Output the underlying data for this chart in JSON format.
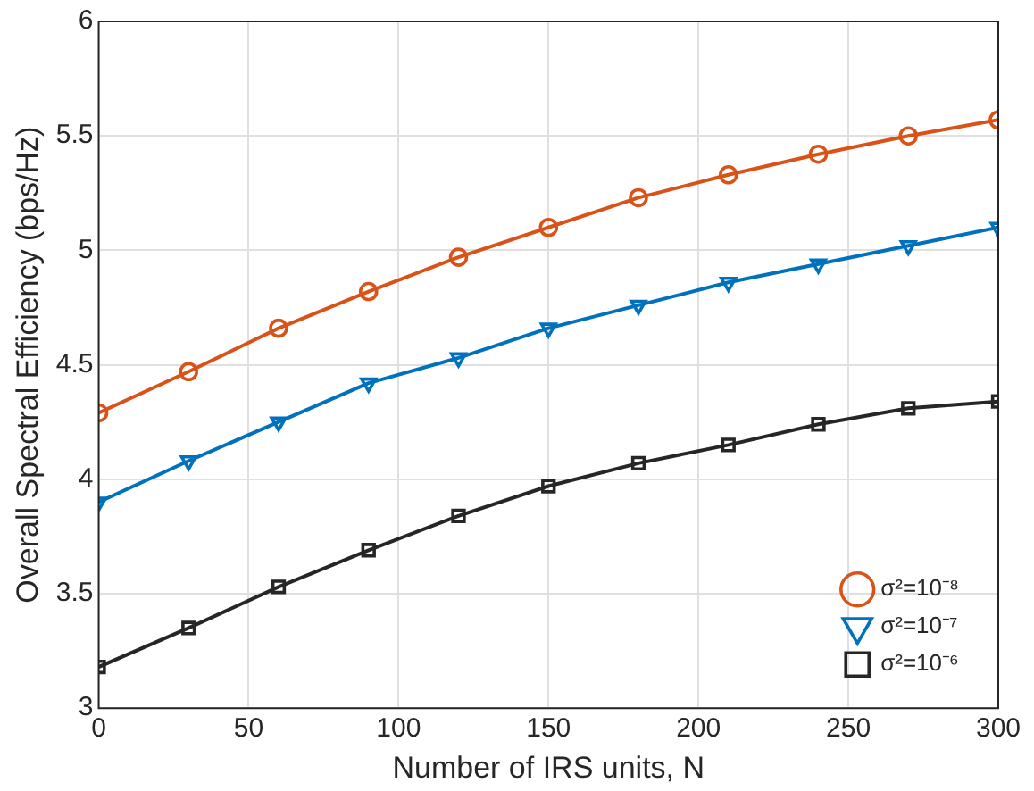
{
  "chart_data": {
    "type": "line",
    "xlabel": "Number of IRS units, N",
    "ylabel": "Overall Spectral Efficiency (bps/Hz)",
    "x": [
      0,
      30,
      60,
      90,
      120,
      150,
      180,
      210,
      240,
      270,
      300
    ],
    "series": [
      {
        "name": "σ²=10⁻⁸",
        "color": "#d95319",
        "marker": "circle",
        "values": [
          4.29,
          4.47,
          4.66,
          4.82,
          4.97,
          5.1,
          5.23,
          5.33,
          5.42,
          5.5,
          5.57
        ]
      },
      {
        "name": "σ²=10⁻⁷",
        "color": "#0072bd",
        "marker": "triangle",
        "values": [
          3.9,
          4.08,
          4.25,
          4.42,
          4.53,
          4.66,
          4.76,
          4.86,
          4.94,
          5.02,
          5.1
        ]
      },
      {
        "name": "σ²=10⁻⁶",
        "color": "#262626",
        "marker": "square",
        "values": [
          3.18,
          3.35,
          3.53,
          3.69,
          3.84,
          3.97,
          4.07,
          4.15,
          4.24,
          4.31,
          4.34
        ]
      }
    ],
    "xlim": [
      0,
      300
    ],
    "xticks": [
      0,
      50,
      100,
      150,
      200,
      250,
      300
    ],
    "ylim": [
      3,
      6
    ],
    "yticks": [
      3,
      3.5,
      4,
      4.5,
      5,
      5.5,
      6
    ],
    "grid": true,
    "legend": "bottom right",
    "line_style": "solid"
  }
}
